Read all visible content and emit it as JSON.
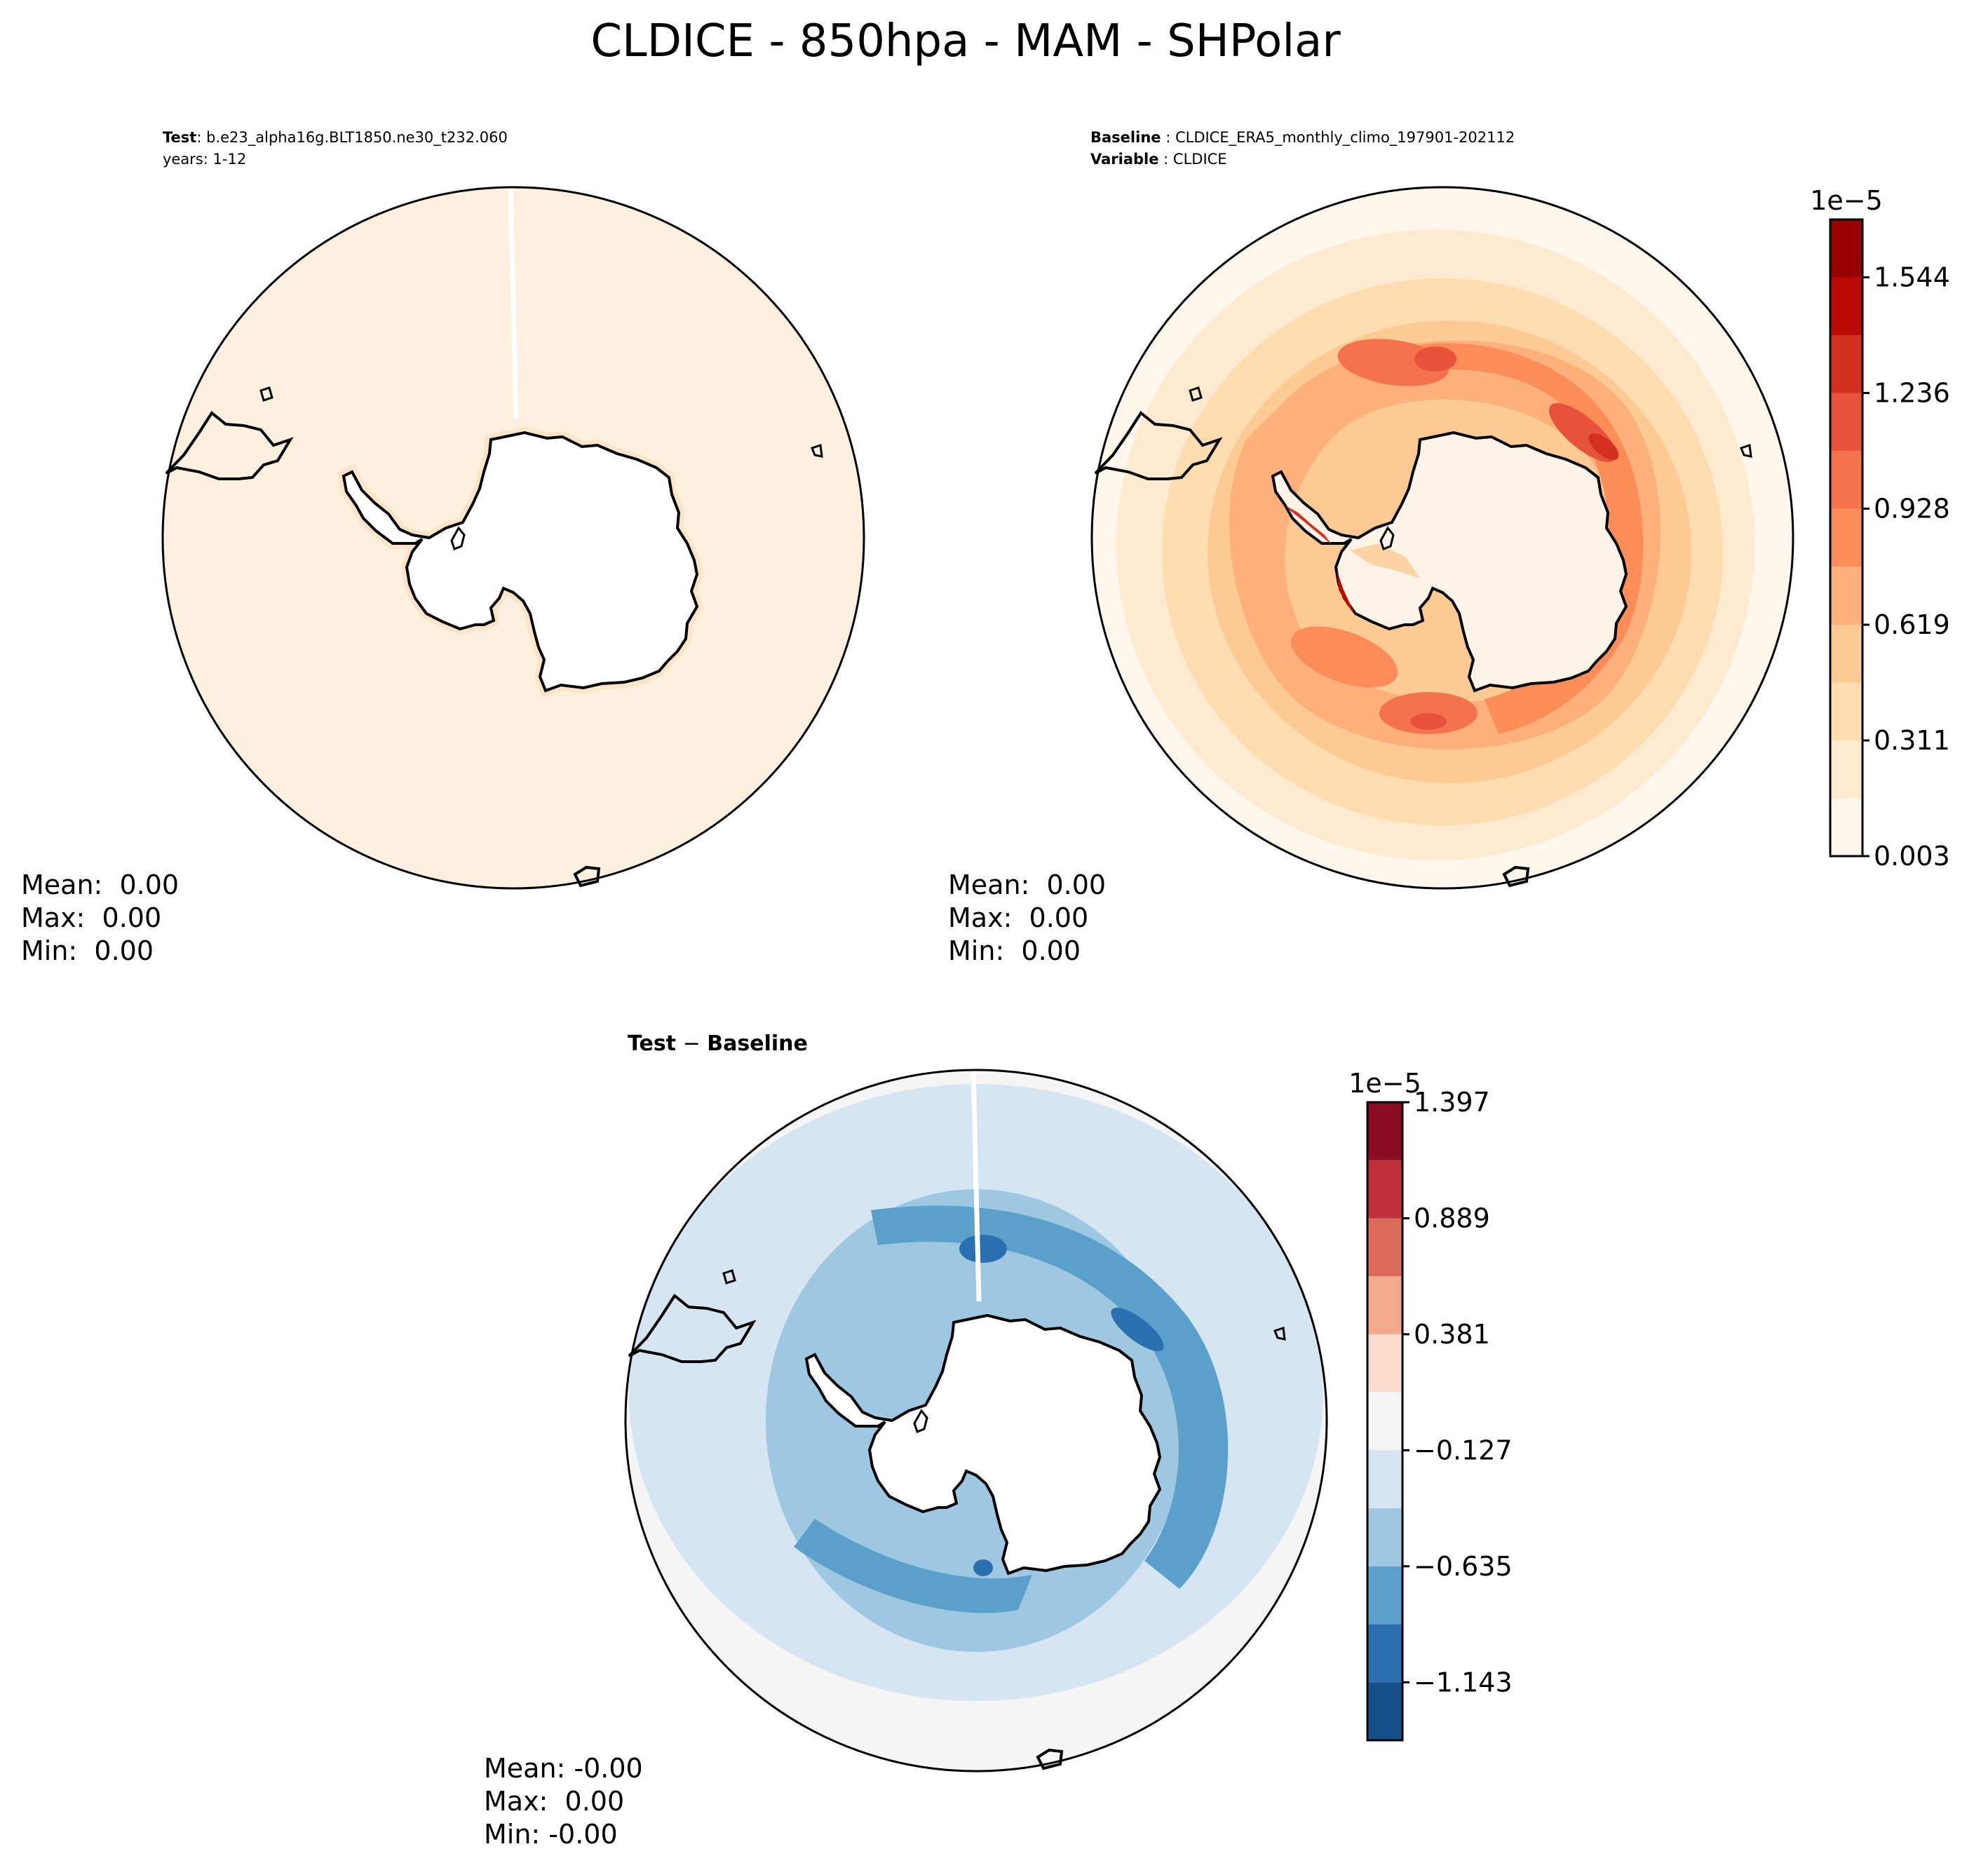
{
  "title": "CLDICE - 850hpa - MAM - SHPolar",
  "colors": {
    "land": "#ffffff",
    "coast": "#000000",
    "test_fill": "#fdf0df",
    "seam": "#ffffff"
  },
  "chart_data": [
    {
      "type": "heatmap",
      "panel": "test",
      "projection": "south-polar-stereographic",
      "header": [
        {
          "key": "Test",
          "value": "b.e23_alpha16g.BLT1850.ne30_t232.060"
        },
        {
          "key": "",
          "value": "years: 1-12"
        }
      ],
      "colormap": "Oranges-Reds (OrRd)",
      "field": "near-uniform ~0",
      "stats": {
        "mean": "Mean:  0.00",
        "max": "Max:  0.00",
        "min": "Min:  0.00"
      }
    },
    {
      "type": "heatmap",
      "panel": "baseline",
      "projection": "south-polar-stereographic",
      "header": [
        {
          "key": "Baseline",
          "value": "CLDICE_ERA5_monthly_climo_197901-202112"
        },
        {
          "key": "Variable",
          "value": "CLDICE"
        }
      ],
      "colorbar": {
        "multiplier": "1e−5",
        "levels": [
          0.003,
          0.157,
          0.311,
          0.465,
          0.619,
          0.774,
          0.928,
          1.082,
          1.236,
          1.39,
          1.544,
          1.698
        ],
        "tick_labels": [
          "0.003",
          "0.311",
          "0.619",
          "0.928",
          "1.236",
          "1.544"
        ],
        "tick_values": [
          0.003,
          0.311,
          0.619,
          0.928,
          1.236,
          1.544
        ],
        "colors": [
          "#fff7ec",
          "#feebcf",
          "#fddcaf",
          "#fdca94",
          "#fdb07a",
          "#fc8d59",
          "#f4734c",
          "#e7533a",
          "#d42f1f",
          "#bb0a04",
          "#990000",
          "#7f0000"
        ]
      },
      "stats": {
        "mean": "Mean:  0.00",
        "max": "Max:  0.00",
        "min": "Min:  0.00"
      }
    },
    {
      "type": "heatmap",
      "panel": "difference",
      "projection": "south-polar-stereographic",
      "header": [
        {
          "key": "Test",
          "value": ""
        },
        {
          "key": "Baseline",
          "value": ""
        }
      ],
      "colorbar": {
        "multiplier": "1e−5",
        "levels": [
          -1.397,
          -1.143,
          -0.889,
          -0.635,
          -0.381,
          -0.127,
          0.127,
          0.381,
          0.635,
          0.889,
          1.143,
          1.397
        ],
        "tick_labels": [
          "−1.143",
          "−0.635",
          "−0.127",
          "0.381",
          "0.889",
          "1.397"
        ],
        "tick_values": [
          -1.143,
          -0.635,
          -0.127,
          0.381,
          0.889,
          1.397
        ],
        "colors": [
          "#144f8a",
          "#2a6fb0",
          "#5aa0cb",
          "#9ec8e1",
          "#d5e5f1",
          "#f5f5f5",
          "#fbdccf",
          "#f3a98c",
          "#db6b58",
          "#be303a",
          "#8a0c25"
        ]
      },
      "stats": {
        "mean": "Mean: -0.00",
        "max": "Max:  0.00",
        "min": "Min: -0.00"
      }
    }
  ]
}
